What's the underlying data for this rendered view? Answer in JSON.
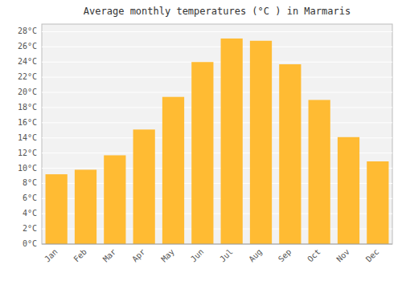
{
  "chart_data": {
    "type": "bar",
    "title": "Average monthly temperatures (°C ) in Marmaris",
    "categories": [
      "Jan",
      "Feb",
      "Mar",
      "Apr",
      "May",
      "Jun",
      "Jul",
      "Aug",
      "Sep",
      "Oct",
      "Nov",
      "Dec"
    ],
    "values": [
      9.2,
      9.8,
      11.7,
      15.1,
      19.4,
      24.0,
      27.1,
      26.8,
      23.7,
      19.0,
      14.1,
      10.9
    ],
    "color": "#FFBB33",
    "ylim": [
      0,
      29
    ],
    "yticks": [
      {
        "value": 0,
        "label": "0°C"
      },
      {
        "value": 2,
        "label": "2°C"
      },
      {
        "value": 4,
        "label": "4°C"
      },
      {
        "value": 6,
        "label": "6°C"
      },
      {
        "value": 8,
        "label": "8°C"
      },
      {
        "value": 10,
        "label": "10°C"
      },
      {
        "value": 12,
        "label": "12°C"
      },
      {
        "value": 14,
        "label": "14°C"
      },
      {
        "value": 16,
        "label": "16°C"
      },
      {
        "value": 18,
        "label": "18°C"
      },
      {
        "value": 20,
        "label": "20°C"
      },
      {
        "value": 22,
        "label": "22°C"
      },
      {
        "value": 24,
        "label": "24°C"
      },
      {
        "value": 26,
        "label": "26°C"
      },
      {
        "value": 28,
        "label": "28°C"
      }
    ],
    "grid": true
  }
}
